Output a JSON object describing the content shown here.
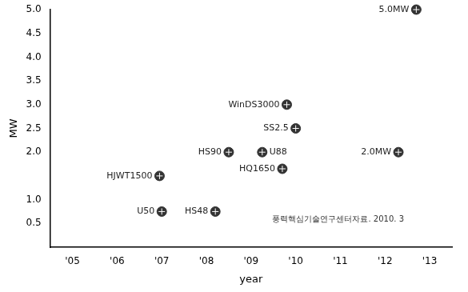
{
  "chart_data": {
    "type": "scatter",
    "x_label": "year",
    "y_label": "MW",
    "annotations": [
      "풍력핵심기술연구센터자료. 2010. 3"
    ],
    "x": [
      2006.95,
      2008.5,
      2009.25,
      2009.8,
      2010.0,
      2009.7,
      2007.0,
      2008.2,
      2012.3,
      2012.7
    ],
    "values": [
      1.5,
      2.0,
      2.0,
      3.0,
      2.5,
      1.65,
      0.75,
      0.75,
      2.0,
      5.0
    ],
    "point_labels": [
      "HJWT1500",
      "HS90",
      "U88",
      "WinDS3000",
      "SS2.5",
      "HQ1650",
      "U50",
      "HS48",
      "2.0MW",
      "5.0MW"
    ],
    "color": "#333333",
    "marker": "circle",
    "grid": false,
    "xlim": [
      2004.5,
      2013.5
    ],
    "xticks": [
      {
        "value": 2005,
        "label": "'05"
      },
      {
        "value": 2006,
        "label": "'06"
      },
      {
        "value": 2007,
        "label": "'07"
      },
      {
        "value": 2008,
        "label": "'08"
      },
      {
        "value": 2009,
        "label": "'09"
      },
      {
        "value": 2010,
        "label": "'10"
      },
      {
        "value": 2011,
        "label": "'11"
      },
      {
        "value": 2012,
        "label": "'12"
      },
      {
        "value": 2013,
        "label": "'13"
      }
    ],
    "ylim": [
      0,
      5
    ],
    "yticks": [
      0.5,
      {
        "value": 1,
        "label": "1.0"
      },
      {
        "value": 2,
        "label": "2.0"
      },
      2.5,
      {
        "value": 3,
        "label": "3.0"
      },
      3.5,
      {
        "value": 4,
        "label": "4.0"
      },
      4.5,
      {
        "value": 5,
        "label": "5.0"
      }
    ]
  }
}
